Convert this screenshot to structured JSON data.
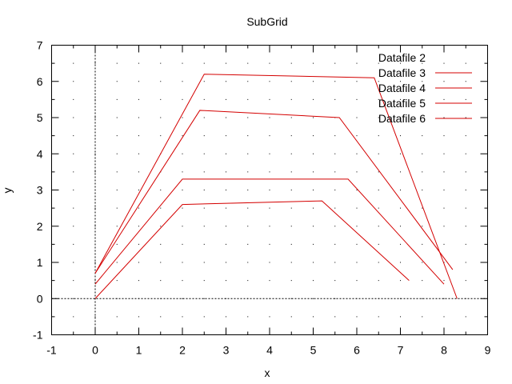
{
  "chart_data": {
    "type": "line",
    "title": "SubGrid",
    "xlabel": "x",
    "ylabel": "y",
    "xlim": [
      -1,
      9
    ],
    "ylim": [
      -1,
      7
    ],
    "x_ticks": [
      "-1",
      "0",
      "1",
      "2",
      "3",
      "4",
      "5",
      "6",
      "7",
      "8",
      "9"
    ],
    "y_ticks": [
      "-1",
      "0",
      "1",
      "2",
      "3",
      "4",
      "5",
      "6",
      "7"
    ],
    "grid": "minor dotted grid",
    "zero_axes": true,
    "legend_position": "top-right",
    "series": [
      {
        "name": "Datafile 2",
        "x": [],
        "y": []
      },
      {
        "name": "Datafile 3",
        "x": [
          0,
          2,
          5.2,
          7.2
        ],
        "y": [
          0,
          2.6,
          2.7,
          0.5
        ]
      },
      {
        "name": "Datafile 4",
        "x": [
          0,
          2,
          5.8,
          8
        ],
        "y": [
          0.4,
          3.3,
          3.3,
          0.4
        ]
      },
      {
        "name": "Datafile 5",
        "x": [
          0,
          2.4,
          5.6,
          8.2
        ],
        "y": [
          0.7,
          5.2,
          5.0,
          0.8
        ]
      },
      {
        "name": "Datafile 6",
        "x": [
          0,
          2.5,
          6.4,
          8.3
        ],
        "y": [
          0.7,
          6.2,
          6.1,
          0.0
        ]
      }
    ],
    "colors": {
      "series": "#d40000",
      "axes": "#000000"
    }
  }
}
